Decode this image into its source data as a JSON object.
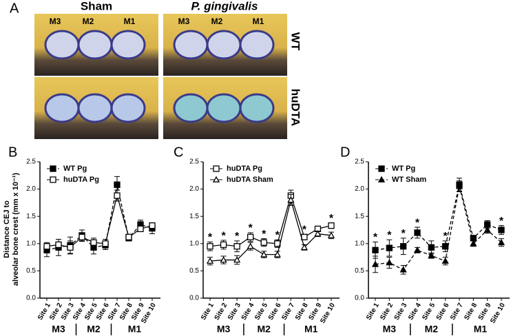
{
  "figure": {
    "panel_labels": [
      "A",
      "B",
      "C",
      "D"
    ],
    "photo_columns": [
      "Sham",
      "P. gingivalis"
    ],
    "photo_rows": [
      "WT",
      "huDTA"
    ],
    "tooth_labels": [
      "M3",
      "M2",
      "M1"
    ]
  },
  "chart_data": [
    {
      "type": "line",
      "y_label": [
        "Distance CEJ to",
        "alveolar bone crest (mm x 10⁻¹)"
      ],
      "categories": [
        "Site 1",
        "Site 2",
        "Site 3",
        "Site 4",
        "Site 5",
        "Site 6",
        "Site 7",
        "Site 8",
        "Site 9",
        "Site 10"
      ],
      "category_groups": [
        "M3",
        "M3",
        "M3",
        "M2",
        "M2",
        "M2",
        "M1",
        "M1",
        "M1",
        "M1"
      ],
      "ylim": [
        0,
        2.5
      ],
      "yticks": [
        {
          "value": 0,
          "label": "0.0"
        },
        {
          "value": 0.5,
          "label": "0.5"
        },
        {
          "value": 1,
          "label": "1.0"
        },
        {
          "value": 1.5,
          "label": "1.5"
        },
        {
          "value": 2,
          "label": "2.0"
        },
        {
          "value": 2.5,
          "label": "2.5"
        }
      ],
      "legend": "top-left",
      "series": [
        {
          "name": "WT Pg",
          "color": "#000000",
          "marker": "square",
          "filled": true,
          "dashed": true,
          "values": [
            0.88,
            0.93,
            0.97,
            1.15,
            0.93,
            0.97,
            2.08,
            1.1,
            1.35,
            1.28
          ],
          "errors": [
            0.12,
            0.15,
            0.15,
            0.1,
            0.12,
            0.08,
            0.15,
            0.05,
            0.08,
            0.1
          ]
        },
        {
          "name": "huDTA Pg",
          "color": "#000000",
          "marker": "square",
          "filled": false,
          "dashed": false,
          "values": [
            0.95,
            0.98,
            0.93,
            1.12,
            1.02,
            1.0,
            1.88,
            1.12,
            1.27,
            1.33
          ],
          "errors": [
            0.07,
            0.1,
            0.12,
            0.08,
            0.08,
            0.08,
            0.1,
            0.05,
            0.05,
            0.05
          ]
        }
      ],
      "significance": [
        null,
        null,
        null,
        null,
        null,
        null,
        null,
        null,
        null,
        null
      ]
    },
    {
      "type": "line",
      "categories": [
        "Site 1",
        "Site 2",
        "Site 3",
        "Site 4",
        "Site 5",
        "Site 6",
        "Site 7",
        "Site 8",
        "Site 9",
        "Site 10"
      ],
      "category_groups": [
        "M3",
        "M3",
        "M3",
        "M2",
        "M2",
        "M2",
        "M1",
        "M1",
        "M1",
        "M1"
      ],
      "ylim": [
        0,
        2.5
      ],
      "yticks": [
        {
          "value": 0,
          "label": "0.0"
        },
        {
          "value": 0.5,
          "label": "0.5"
        },
        {
          "value": 1,
          "label": "1.0"
        },
        {
          "value": 1.5,
          "label": "1.5"
        },
        {
          "value": 2,
          "label": "2.0"
        },
        {
          "value": 2.5,
          "label": "2.5"
        }
      ],
      "legend": "top-left",
      "series": [
        {
          "name": "huDTA Pg",
          "color": "#000000",
          "marker": "square",
          "filled": false,
          "dashed": false,
          "values": [
            0.95,
            0.98,
            0.95,
            1.12,
            1.02,
            1.0,
            1.88,
            1.12,
            1.27,
            1.33
          ],
          "errors": [
            0.08,
            0.08,
            0.1,
            0.08,
            0.07,
            0.07,
            0.1,
            0.05,
            0.05,
            0.05
          ]
        },
        {
          "name": "huDTA Sham",
          "color": "#000000",
          "marker": "triangle",
          "filled": false,
          "dashed": false,
          "values": [
            0.68,
            0.7,
            0.7,
            0.95,
            0.8,
            0.8,
            1.8,
            0.93,
            1.18,
            1.15
          ],
          "errors": [
            0.07,
            0.07,
            0.08,
            0.07,
            0.06,
            0.06,
            0.1,
            0.05,
            0.05,
            0.06
          ]
        }
      ],
      "significance": [
        "*",
        "*",
        "*",
        "*",
        "*",
        "*",
        null,
        "*",
        null,
        "*"
      ]
    },
    {
      "type": "line",
      "categories": [
        "Site 1",
        "Site 2",
        "Site 3",
        "Site 4",
        "Site 5",
        "Site 6",
        "Site 7",
        "Site 8",
        "Site 9",
        "Site 10"
      ],
      "category_groups": [
        "M3",
        "M3",
        "M3",
        "M2",
        "M2",
        "M2",
        "M1",
        "M1",
        "M1",
        "M1"
      ],
      "ylim": [
        0,
        2.5
      ],
      "yticks": [
        {
          "value": 0,
          "label": "0.0"
        },
        {
          "value": 0.5,
          "label": "0.5"
        },
        {
          "value": 1,
          "label": "1.0"
        },
        {
          "value": 1.5,
          "label": "1.5"
        },
        {
          "value": 2,
          "label": "2.0"
        },
        {
          "value": 2.5,
          "label": "2.5"
        }
      ],
      "legend": "top-left",
      "series": [
        {
          "name": "WT Pg",
          "color": "#000000",
          "marker": "square",
          "filled": true,
          "dashed": true,
          "values": [
            0.88,
            0.92,
            0.95,
            1.2,
            0.93,
            0.95,
            2.08,
            1.1,
            1.35,
            1.25
          ],
          "errors": [
            0.15,
            0.15,
            0.15,
            0.1,
            0.12,
            0.1,
            0.12,
            0.05,
            0.07,
            0.08
          ]
        },
        {
          "name": "WT Sham",
          "color": "#000000",
          "marker": "triangle",
          "filled": true,
          "dashed": true,
          "values": [
            0.62,
            0.65,
            0.52,
            0.88,
            0.78,
            0.68,
            2.05,
            1.0,
            1.25,
            1.02
          ],
          "errors": [
            0.15,
            0.1,
            0.08,
            0.05,
            0.05,
            0.07,
            0.1,
            0.05,
            0.06,
            0.07
          ]
        }
      ],
      "significance": [
        "*",
        "*",
        "*",
        "*",
        null,
        "*",
        null,
        null,
        null,
        "*"
      ]
    }
  ]
}
